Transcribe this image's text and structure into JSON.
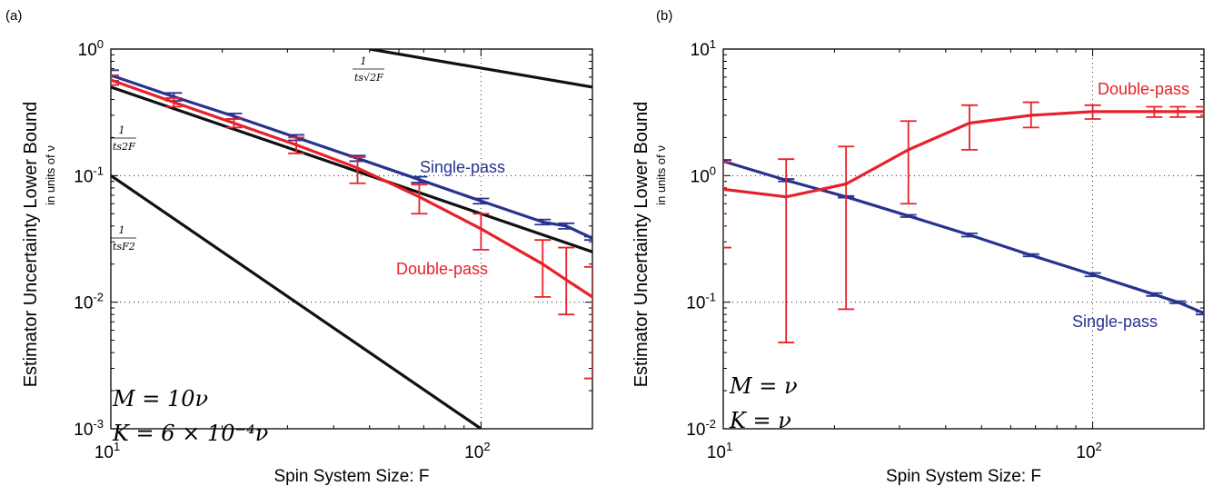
{
  "colors": {
    "red": "#e8202a",
    "blue": "#27338f",
    "black": "#111111"
  },
  "chart_data": [
    {
      "panel_label": "(a)",
      "type": "line",
      "log_x": true,
      "log_y": true,
      "xlim": [
        10,
        200
      ],
      "ylim": [
        0.001,
        1
      ],
      "xlabel": "Spin System Size: F",
      "ylabel": "Estimator Uncertainty Lower Bound",
      "ylabel_sub": "in units of ν",
      "x_ticks": [
        {
          "value": 10,
          "base": "10",
          "exp": "1"
        },
        {
          "value": 100,
          "base": "10",
          "exp": "2"
        }
      ],
      "y_ticks": [
        {
          "value": 1,
          "base": "10",
          "exp": "0"
        },
        {
          "value": 0.1,
          "base": "10",
          "exp": "-1"
        },
        {
          "value": 0.01,
          "base": "10",
          "exp": "-2"
        },
        {
          "value": 0.001,
          "base": "10",
          "exp": "-3"
        }
      ],
      "params": [
        "M = 10ν",
        "K = 6 × 10⁻⁴ν"
      ],
      "series": [
        {
          "name": "Single-pass",
          "color": "blue",
          "x": [
            10,
            14.8,
            21.5,
            31.7,
            46.4,
            68.1,
            100,
            146.8,
            170,
            200
          ],
          "y": [
            0.62,
            0.42,
            0.295,
            0.2,
            0.137,
            0.093,
            0.063,
            0.043,
            0.04,
            0.032
          ],
          "err_low": [
            0.56,
            0.39,
            0.28,
            0.19,
            0.13,
            0.088,
            0.06,
            0.041,
            0.038,
            0.031
          ],
          "err_high": [
            0.68,
            0.45,
            0.31,
            0.21,
            0.144,
            0.098,
            0.066,
            0.045,
            0.042,
            0.033
          ]
        },
        {
          "name": "Double-pass",
          "color": "red",
          "x": [
            10,
            14.8,
            21.5,
            31.7,
            46.4,
            68.1,
            100,
            146.8,
            170,
            200
          ],
          "y": [
            0.57,
            0.38,
            0.26,
            0.175,
            0.115,
            0.068,
            0.038,
            0.02,
            0.015,
            0.011
          ],
          "err_low": [
            0.52,
            0.35,
            0.24,
            0.15,
            0.087,
            0.05,
            0.026,
            0.011,
            0.008,
            0.0025
          ],
          "err_high": [
            0.62,
            0.41,
            0.28,
            0.2,
            0.14,
            0.085,
            0.05,
            0.031,
            0.027,
            0.019
          ]
        }
      ],
      "reference_lines": [
        {
          "label": "1/(t_s√(2F))",
          "num": "1",
          "den": "ts√2F",
          "color": "black",
          "x": [
            50,
            200
          ],
          "y": [
            1.0,
            0.5
          ]
        },
        {
          "label": "1/(t_s 2F)",
          "num": "1",
          "den": "ts2F",
          "color": "black",
          "x": [
            10,
            200
          ],
          "y": [
            0.5,
            0.025
          ]
        },
        {
          "label": "1/(t_s F^2)",
          "num": "1",
          "den": "tsF2",
          "color": "black",
          "x": [
            10,
            100
          ],
          "y": [
            0.1,
            0.001
          ]
        }
      ]
    },
    {
      "panel_label": "(b)",
      "type": "line",
      "log_x": true,
      "log_y": true,
      "xlim": [
        10,
        200
      ],
      "ylim": [
        0.01,
        10
      ],
      "xlabel": "Spin System Size: F",
      "ylabel": "Estimator Uncertainty Lower Bound",
      "ylabel_sub": "in units of ν",
      "x_ticks": [
        {
          "value": 10,
          "base": "10",
          "exp": "1"
        },
        {
          "value": 100,
          "base": "10",
          "exp": "2"
        }
      ],
      "y_ticks": [
        {
          "value": 10,
          "base": "10",
          "exp": "1"
        },
        {
          "value": 1,
          "base": "10",
          "exp": "0"
        },
        {
          "value": 0.1,
          "base": "10",
          "exp": "-1"
        },
        {
          "value": 0.01,
          "base": "10",
          "exp": "-2"
        }
      ],
      "params": [
        "M = ν",
        "K = ν"
      ],
      "series": [
        {
          "name": "Single-pass",
          "color": "blue",
          "x": [
            10,
            14.8,
            21.5,
            31.7,
            46.4,
            68.1,
            100,
            146.8,
            170,
            200
          ],
          "y": [
            1.3,
            0.92,
            0.68,
            0.48,
            0.34,
            0.235,
            0.165,
            0.115,
            0.1,
            0.082
          ],
          "err_low": [
            1.27,
            0.9,
            0.67,
            0.47,
            0.33,
            0.23,
            0.16,
            0.112,
            0.098,
            0.08
          ],
          "err_high": [
            1.33,
            0.94,
            0.69,
            0.49,
            0.35,
            0.24,
            0.17,
            0.118,
            0.102,
            0.084
          ]
        },
        {
          "name": "Double-pass",
          "color": "red",
          "x": [
            10,
            14.8,
            21.5,
            31.7,
            46.4,
            68.1,
            100,
            146.8,
            170,
            200
          ],
          "y": [
            0.78,
            0.68,
            0.86,
            1.6,
            2.6,
            3.0,
            3.2,
            3.2,
            3.2,
            3.2
          ],
          "err_low": [
            0.27,
            0.048,
            0.088,
            0.6,
            1.6,
            2.4,
            2.8,
            2.9,
            2.9,
            2.9
          ],
          "err_high": [
            1.28,
            1.35,
            1.7,
            2.7,
            3.6,
            3.8,
            3.6,
            3.5,
            3.5,
            3.5
          ]
        }
      ]
    }
  ]
}
